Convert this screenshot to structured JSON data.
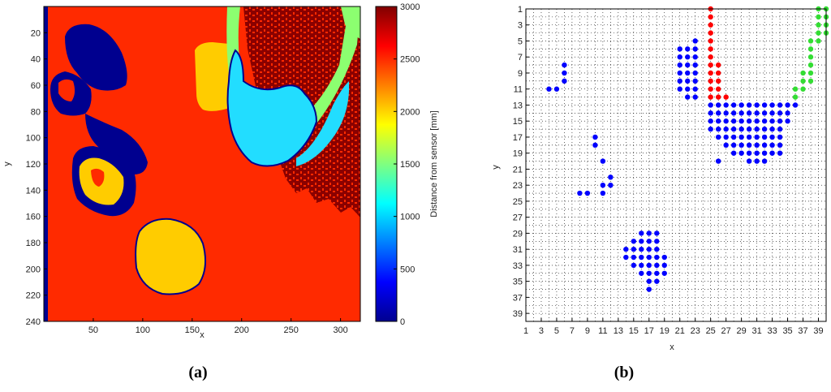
{
  "figure": {
    "caption_a": "(a)",
    "caption_b": "(b)"
  },
  "chart_data": [
    {
      "type": "heatmap",
      "panel": "a",
      "xlabel": "x",
      "ylabel": "y",
      "xlim": [
        0,
        320
      ],
      "ylim": [
        240,
        0
      ],
      "xticks": [
        50,
        100,
        150,
        200,
        250,
        300
      ],
      "yticks": [
        20,
        40,
        60,
        80,
        100,
        120,
        140,
        160,
        180,
        200,
        220,
        240
      ],
      "colorbar": {
        "label": "Distance from sensor [mm]",
        "range": [
          0,
          3000
        ],
        "ticks": [
          0,
          500,
          1000,
          1500,
          2000,
          2500,
          3000
        ]
      },
      "colors": {
        "red": "#ff2a00",
        "orange": "#ffcc00",
        "navy": "#00008f",
        "cyan": "#22ddff",
        "green": "#8cff70",
        "maroon": "#8a0000"
      }
    },
    {
      "type": "scatter",
      "panel": "b",
      "xlabel": "x",
      "ylabel": "y",
      "xlim": [
        1,
        40
      ],
      "ylim": [
        40,
        1
      ],
      "xticks": [
        1,
        3,
        5,
        7,
        9,
        11,
        13,
        15,
        17,
        19,
        21,
        23,
        25,
        27,
        29,
        31,
        33,
        35,
        37,
        39
      ],
      "yticks": [
        1,
        3,
        5,
        7,
        9,
        11,
        13,
        15,
        17,
        19,
        21,
        23,
        25,
        27,
        29,
        31,
        33,
        35,
        37,
        39
      ],
      "grid": true,
      "series": [
        {
          "color": "#0000ff",
          "points": [
            [
              4,
              11
            ],
            [
              5,
              11
            ],
            [
              6,
              8
            ],
            [
              6,
              9
            ],
            [
              6,
              10
            ],
            [
              10,
              17
            ],
            [
              10,
              18
            ],
            [
              11,
              20
            ],
            [
              12,
              22
            ],
            [
              11,
              23
            ],
            [
              12,
              23
            ],
            [
              11,
              24
            ],
            [
              8,
              24
            ],
            [
              9,
              24
            ],
            [
              21,
              6
            ],
            [
              22,
              6
            ],
            [
              23,
              5
            ],
            [
              21,
              7
            ],
            [
              22,
              7
            ],
            [
              23,
              6
            ],
            [
              21,
              8
            ],
            [
              22,
              8
            ],
            [
              23,
              7
            ],
            [
              21,
              9
            ],
            [
              22,
              9
            ],
            [
              23,
              8
            ],
            [
              21,
              10
            ],
            [
              22,
              10
            ],
            [
              23,
              9
            ],
            [
              21,
              11
            ],
            [
              22,
              11
            ],
            [
              23,
              10
            ],
            [
              22,
              12
            ],
            [
              23,
              11
            ],
            [
              23,
              12
            ],
            [
              25,
              13
            ],
            [
              26,
              13
            ],
            [
              27,
              13
            ],
            [
              28,
              13
            ],
            [
              29,
              13
            ],
            [
              30,
              13
            ],
            [
              31,
              13
            ],
            [
              32,
              13
            ],
            [
              33,
              13
            ],
            [
              34,
              13
            ],
            [
              35,
              13
            ],
            [
              36,
              13
            ],
            [
              25,
              14
            ],
            [
              26,
              14
            ],
            [
              27,
              14
            ],
            [
              28,
              14
            ],
            [
              29,
              14
            ],
            [
              30,
              14
            ],
            [
              31,
              14
            ],
            [
              32,
              14
            ],
            [
              33,
              14
            ],
            [
              34,
              14
            ],
            [
              35,
              14
            ],
            [
              25,
              15
            ],
            [
              26,
              15
            ],
            [
              27,
              15
            ],
            [
              28,
              15
            ],
            [
              29,
              15
            ],
            [
              30,
              15
            ],
            [
              31,
              15
            ],
            [
              32,
              15
            ],
            [
              33,
              15
            ],
            [
              34,
              15
            ],
            [
              35,
              15
            ],
            [
              25,
              16
            ],
            [
              26,
              16
            ],
            [
              27,
              16
            ],
            [
              28,
              16
            ],
            [
              29,
              16
            ],
            [
              30,
              16
            ],
            [
              31,
              16
            ],
            [
              32,
              16
            ],
            [
              33,
              16
            ],
            [
              34,
              16
            ],
            [
              26,
              17
            ],
            [
              27,
              17
            ],
            [
              28,
              17
            ],
            [
              29,
              17
            ],
            [
              30,
              17
            ],
            [
              31,
              17
            ],
            [
              32,
              17
            ],
            [
              33,
              17
            ],
            [
              34,
              17
            ],
            [
              27,
              18
            ],
            [
              28,
              18
            ],
            [
              29,
              18
            ],
            [
              30,
              18
            ],
            [
              31,
              18
            ],
            [
              32,
              18
            ],
            [
              33,
              18
            ],
            [
              34,
              18
            ],
            [
              28,
              19
            ],
            [
              29,
              19
            ],
            [
              30,
              19
            ],
            [
              31,
              19
            ],
            [
              32,
              19
            ],
            [
              33,
              19
            ],
            [
              34,
              19
            ],
            [
              26,
              20
            ],
            [
              30,
              20
            ],
            [
              31,
              20
            ],
            [
              32,
              20
            ],
            [
              16,
              29
            ],
            [
              17,
              29
            ],
            [
              18,
              29
            ],
            [
              15,
              30
            ],
            [
              16,
              30
            ],
            [
              17,
              30
            ],
            [
              18,
              30
            ],
            [
              14,
              31
            ],
            [
              15,
              31
            ],
            [
              16,
              31
            ],
            [
              17,
              31
            ],
            [
              18,
              31
            ],
            [
              14,
              32
            ],
            [
              15,
              32
            ],
            [
              16,
              32
            ],
            [
              17,
              32
            ],
            [
              18,
              32
            ],
            [
              19,
              32
            ],
            [
              15,
              33
            ],
            [
              16,
              33
            ],
            [
              17,
              33
            ],
            [
              18,
              33
            ],
            [
              19,
              33
            ],
            [
              16,
              34
            ],
            [
              17,
              34
            ],
            [
              18,
              34
            ],
            [
              19,
              34
            ],
            [
              17,
              35
            ],
            [
              18,
              35
            ],
            [
              17,
              36
            ]
          ]
        },
        {
          "color": "#ff0000",
          "points": [
            [
              25,
              1
            ],
            [
              25,
              2
            ],
            [
              25,
              3
            ],
            [
              25,
              4
            ],
            [
              25,
              5
            ],
            [
              25,
              6
            ],
            [
              25,
              7
            ],
            [
              25,
              8
            ],
            [
              25,
              9
            ],
            [
              25,
              10
            ],
            [
              25,
              11
            ],
            [
              25,
              12
            ],
            [
              26,
              8
            ],
            [
              26,
              9
            ],
            [
              26,
              10
            ],
            [
              26,
              11
            ],
            [
              26,
              12
            ],
            [
              27,
              12
            ]
          ]
        },
        {
          "color": "#33dd33",
          "points": [
            [
              39,
              1
            ],
            [
              40,
              1
            ],
            [
              39,
              2
            ],
            [
              40,
              2
            ],
            [
              39,
              3
            ],
            [
              40,
              3
            ],
            [
              39,
              4
            ],
            [
              40,
              4
            ],
            [
              38,
              5
            ],
            [
              39,
              5
            ],
            [
              38,
              6
            ],
            [
              38,
              7
            ],
            [
              38,
              8
            ],
            [
              37,
              9
            ],
            [
              38,
              9
            ],
            [
              37,
              10
            ],
            [
              38,
              10
            ],
            [
              36,
              11
            ],
            [
              37,
              11
            ],
            [
              36,
              12
            ]
          ]
        }
      ]
    }
  ]
}
